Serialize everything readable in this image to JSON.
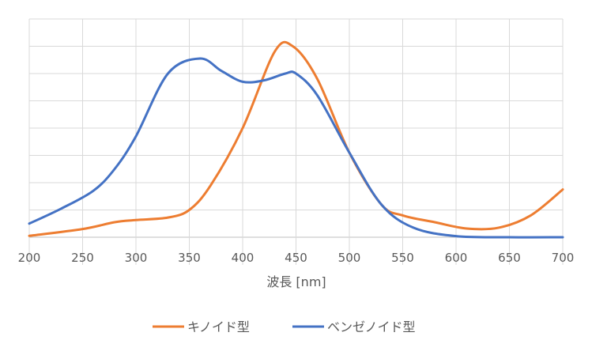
{
  "chart_data": {
    "type": "line",
    "title": "",
    "xlabel": "波長 [nm]",
    "ylabel": "",
    "xlim": [
      200,
      700
    ],
    "ylim": [
      0,
      8
    ],
    "x_ticks": [
      200,
      250,
      300,
      350,
      400,
      450,
      500,
      550,
      600,
      650,
      700
    ],
    "grid": true,
    "legend_position": "bottom",
    "series": [
      {
        "name": "キノイド型",
        "color": "#ed7d31",
        "points": [
          [
            200,
            0.05
          ],
          [
            250,
            0.3
          ],
          [
            280,
            0.55
          ],
          [
            300,
            0.63
          ],
          [
            330,
            0.72
          ],
          [
            350,
            1.0
          ],
          [
            370,
            1.9
          ],
          [
            400,
            4.0
          ],
          [
            430,
            6.8
          ],
          [
            447,
            7.0
          ],
          [
            470,
            5.8
          ],
          [
            500,
            3.1
          ],
          [
            530,
            1.2
          ],
          [
            550,
            0.8
          ],
          [
            580,
            0.55
          ],
          [
            610,
            0.32
          ],
          [
            640,
            0.35
          ],
          [
            670,
            0.8
          ],
          [
            700,
            1.75
          ]
        ]
      },
      {
        "name": "ベンゼノイド型",
        "color": "#4472c4",
        "points": [
          [
            200,
            0.5
          ],
          [
            230,
            1.05
          ],
          [
            260,
            1.7
          ],
          [
            280,
            2.5
          ],
          [
            300,
            3.7
          ],
          [
            330,
            6.0
          ],
          [
            360,
            6.55
          ],
          [
            380,
            6.1
          ],
          [
            400,
            5.7
          ],
          [
            420,
            5.75
          ],
          [
            440,
            6.0
          ],
          [
            450,
            6.0
          ],
          [
            470,
            5.2
          ],
          [
            500,
            3.1
          ],
          [
            530,
            1.2
          ],
          [
            560,
            0.35
          ],
          [
            600,
            0.04
          ],
          [
            650,
            0.0
          ],
          [
            700,
            0.0
          ]
        ]
      }
    ]
  }
}
